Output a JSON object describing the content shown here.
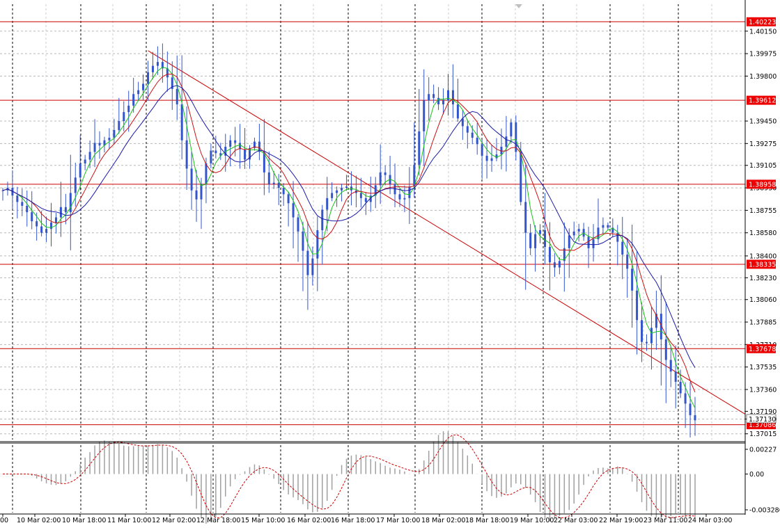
{
  "chart_data": [
    {
      "type": "candlestick",
      "title": "",
      "price_axis": {
        "ticks": [
          "1.40150",
          "1.39975",
          "1.39800",
          "1.39450",
          "1.39275",
          "1.39105",
          "1.38930",
          "1.38755",
          "1.38580",
          "1.38400",
          "1.38230",
          "1.38060",
          "1.37885",
          "1.37710",
          "1.37535",
          "1.37360",
          "1.37190",
          "1.37130",
          "1.37015"
        ],
        "range": [
          1.3697,
          1.4036
        ]
      },
      "time_axis": {
        "labels": [
          "00",
          "10 Mar 02:00",
          "10 Mar 18:00",
          "11 Mar 10:00",
          "12 Mar 02:00",
          "12 Mar 18:00",
          "15 Mar 10:00",
          "16 Mar 02:00",
          "16 Mar 18:00",
          "17 Mar 10:00",
          "18 Mar 02:00",
          "18 Mar 18:00",
          "19 Mar 10:00",
          "22 Mar 03:00",
          "22 Mar 19:00",
          "23 Mar 11:00",
          "24 Mar 03:00"
        ]
      },
      "horizontal_levels": [
        "1.40223",
        "1.39612",
        "1.38958",
        "1.38335",
        "1.37678",
        "1.37086"
      ],
      "current_price": "1.37130",
      "close_series": [
        1.3891,
        1.3893,
        1.3887,
        1.3882,
        1.3879,
        1.3874,
        1.3867,
        1.3863,
        1.3858,
        1.3861,
        1.3866,
        1.387,
        1.3878,
        1.3874,
        1.3889,
        1.3901,
        1.3912,
        1.3915,
        1.3921,
        1.3928,
        1.3926,
        1.393,
        1.3932,
        1.3938,
        1.3945,
        1.3952,
        1.3957,
        1.3966,
        1.3969,
        1.3974,
        1.3983,
        1.3988,
        1.3991,
        1.3986,
        1.3979,
        1.397,
        1.3958,
        1.393,
        1.3908,
        1.3891,
        1.3884,
        1.3896,
        1.3912,
        1.3922,
        1.392,
        1.3918,
        1.3925,
        1.393,
        1.3928,
        1.3923,
        1.3915,
        1.3924,
        1.3929,
        1.3921,
        1.3905,
        1.3896,
        1.3897,
        1.3893,
        1.3888,
        1.3881,
        1.387,
        1.3859,
        1.3844,
        1.3825,
        1.3838,
        1.386,
        1.3876,
        1.3885,
        1.3889,
        1.3891,
        1.3893,
        1.3894,
        1.3891,
        1.3889,
        1.3885,
        1.3882,
        1.3887,
        1.3895,
        1.3905,
        1.3903,
        1.3896,
        1.3888,
        1.3884,
        1.3885,
        1.3894,
        1.3911,
        1.3937,
        1.3961,
        1.3966,
        1.3963,
        1.3958,
        1.3961,
        1.3969,
        1.3958,
        1.3947,
        1.3941,
        1.3936,
        1.3932,
        1.3927,
        1.3918,
        1.3914,
        1.3916,
        1.3919,
        1.3925,
        1.3933,
        1.3944,
        1.3921,
        1.3882,
        1.3858,
        1.3846,
        1.3857,
        1.386,
        1.3847,
        1.3835,
        1.3831,
        1.3836,
        1.3846,
        1.3856,
        1.3859,
        1.3861,
        1.3855,
        1.3846,
        1.3853,
        1.3862,
        1.3864,
        1.3862,
        1.3858,
        1.3851,
        1.3841,
        1.383,
        1.3813,
        1.379,
        1.3773,
        1.3772,
        1.3784,
        1.3795,
        1.3775,
        1.3759,
        1.375,
        1.3742,
        1.3733,
        1.3725,
        1.3716,
        1.3712
      ]
    },
    {
      "type": "oscillator",
      "axis_ticks": [
        "0.00227",
        "0.00",
        "-0.003286"
      ]
    }
  ],
  "colors": {
    "candle": "#3355cc",
    "ma_fast": "#19c419",
    "ma_mid": "#cc1111",
    "ma_slow": "#1a1aaa",
    "level": "#cc0000",
    "level_label_bg": "#ee0000",
    "histogram": "#a0a0a0",
    "signal": "#cc0000"
  }
}
